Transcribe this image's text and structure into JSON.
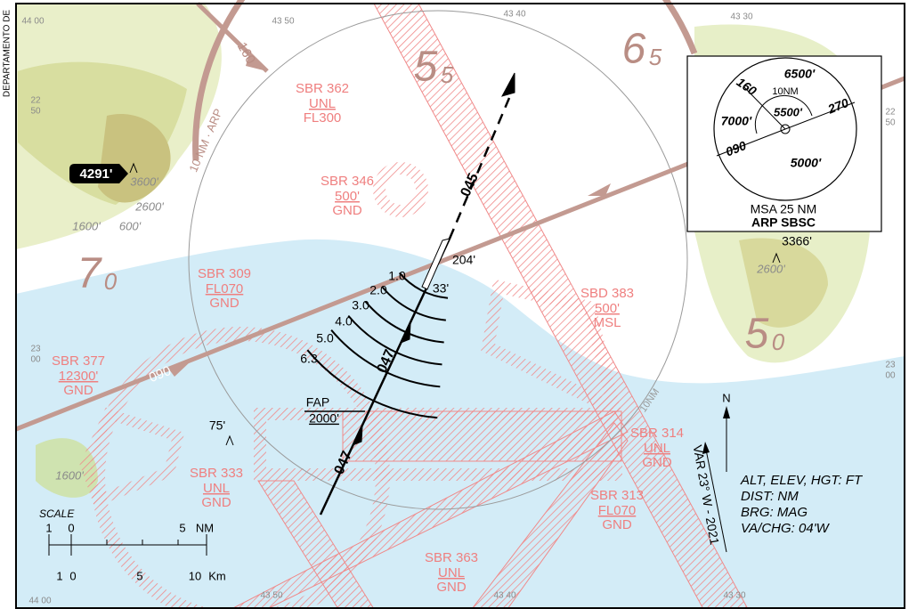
{
  "edge_label": "DEPARTAMENTO DE",
  "grid_labels": {
    "top": [
      "44 00",
      "43 50",
      "43 40",
      "43 30"
    ],
    "bottom": [
      "44 00",
      "43 50",
      "43 40",
      "43 30"
    ],
    "left": [
      [
        "22",
        "50"
      ],
      [
        "23",
        "00"
      ]
    ],
    "right": [
      [
        "22",
        "50"
      ],
      [
        "23",
        "00"
      ]
    ]
  },
  "sectors": [
    {
      "major": "5",
      "minor": "5"
    },
    {
      "major": "6",
      "minor": "5"
    },
    {
      "major": "7",
      "minor": "0"
    },
    {
      "major": "5",
      "minor": "0"
    }
  ],
  "radials": [
    "160",
    "270",
    "090"
  ],
  "arp_ring": "10 NM · ARP",
  "ring_label": "10NM",
  "airspaces": [
    {
      "name": "SBR 362",
      "upper": "UNL",
      "lower": "FL300"
    },
    {
      "name": "SBR 346",
      "upper": "500'",
      "lower": "GND"
    },
    {
      "name": "SBR 309",
      "upper": "FL070",
      "lower": "GND"
    },
    {
      "name": "SBR 377",
      "upper": "12300'",
      "lower": "GND"
    },
    {
      "name": "SBD 383",
      "upper": "500'",
      "lower": "MSL"
    },
    {
      "name": "SBR 314",
      "upper": "UNL",
      "lower": "GND"
    },
    {
      "name": "SBR 313",
      "upper": "FL070",
      "lower": "GND"
    },
    {
      "name": "SBR 333",
      "upper": "UNL",
      "lower": "GND"
    },
    {
      "name": "SBR 363",
      "upper": "UNL",
      "lower": "GND"
    }
  ],
  "highest_elevation": "4291'",
  "elevations": [
    "3600'",
    "2600'",
    "1600'",
    "600'",
    "75'",
    "1600'",
    "3366'",
    "2600'",
    "204'",
    "33'"
  ],
  "tracks": [
    "045",
    "047",
    "047"
  ],
  "dme": [
    "1.0",
    "2.0",
    "3.0",
    "4.0",
    "5.0",
    "6.3"
  ],
  "fap": {
    "label": "FAP",
    "altitude": "2000'"
  },
  "msa": {
    "sectors": [
      "6500'",
      "7000'",
      "5500'",
      "5000'"
    ],
    "inner": "10NM",
    "bearings": [
      "160",
      "270",
      "090"
    ],
    "title": "MSA 25 NM",
    "reference": "ARP SBSC"
  },
  "north": "N",
  "variation": "VAR 23° W - 2021",
  "notes": [
    "ALT, ELEV, HGT: FT",
    "DIST: NM",
    "BRG: MAG",
    "VA/CHG: 04'W"
  ],
  "scale": {
    "title": "SCALE",
    "nm": [
      "1",
      "0",
      "5",
      "NM"
    ],
    "km": [
      "1",
      "0",
      "5",
      "10",
      "Km"
    ]
  }
}
